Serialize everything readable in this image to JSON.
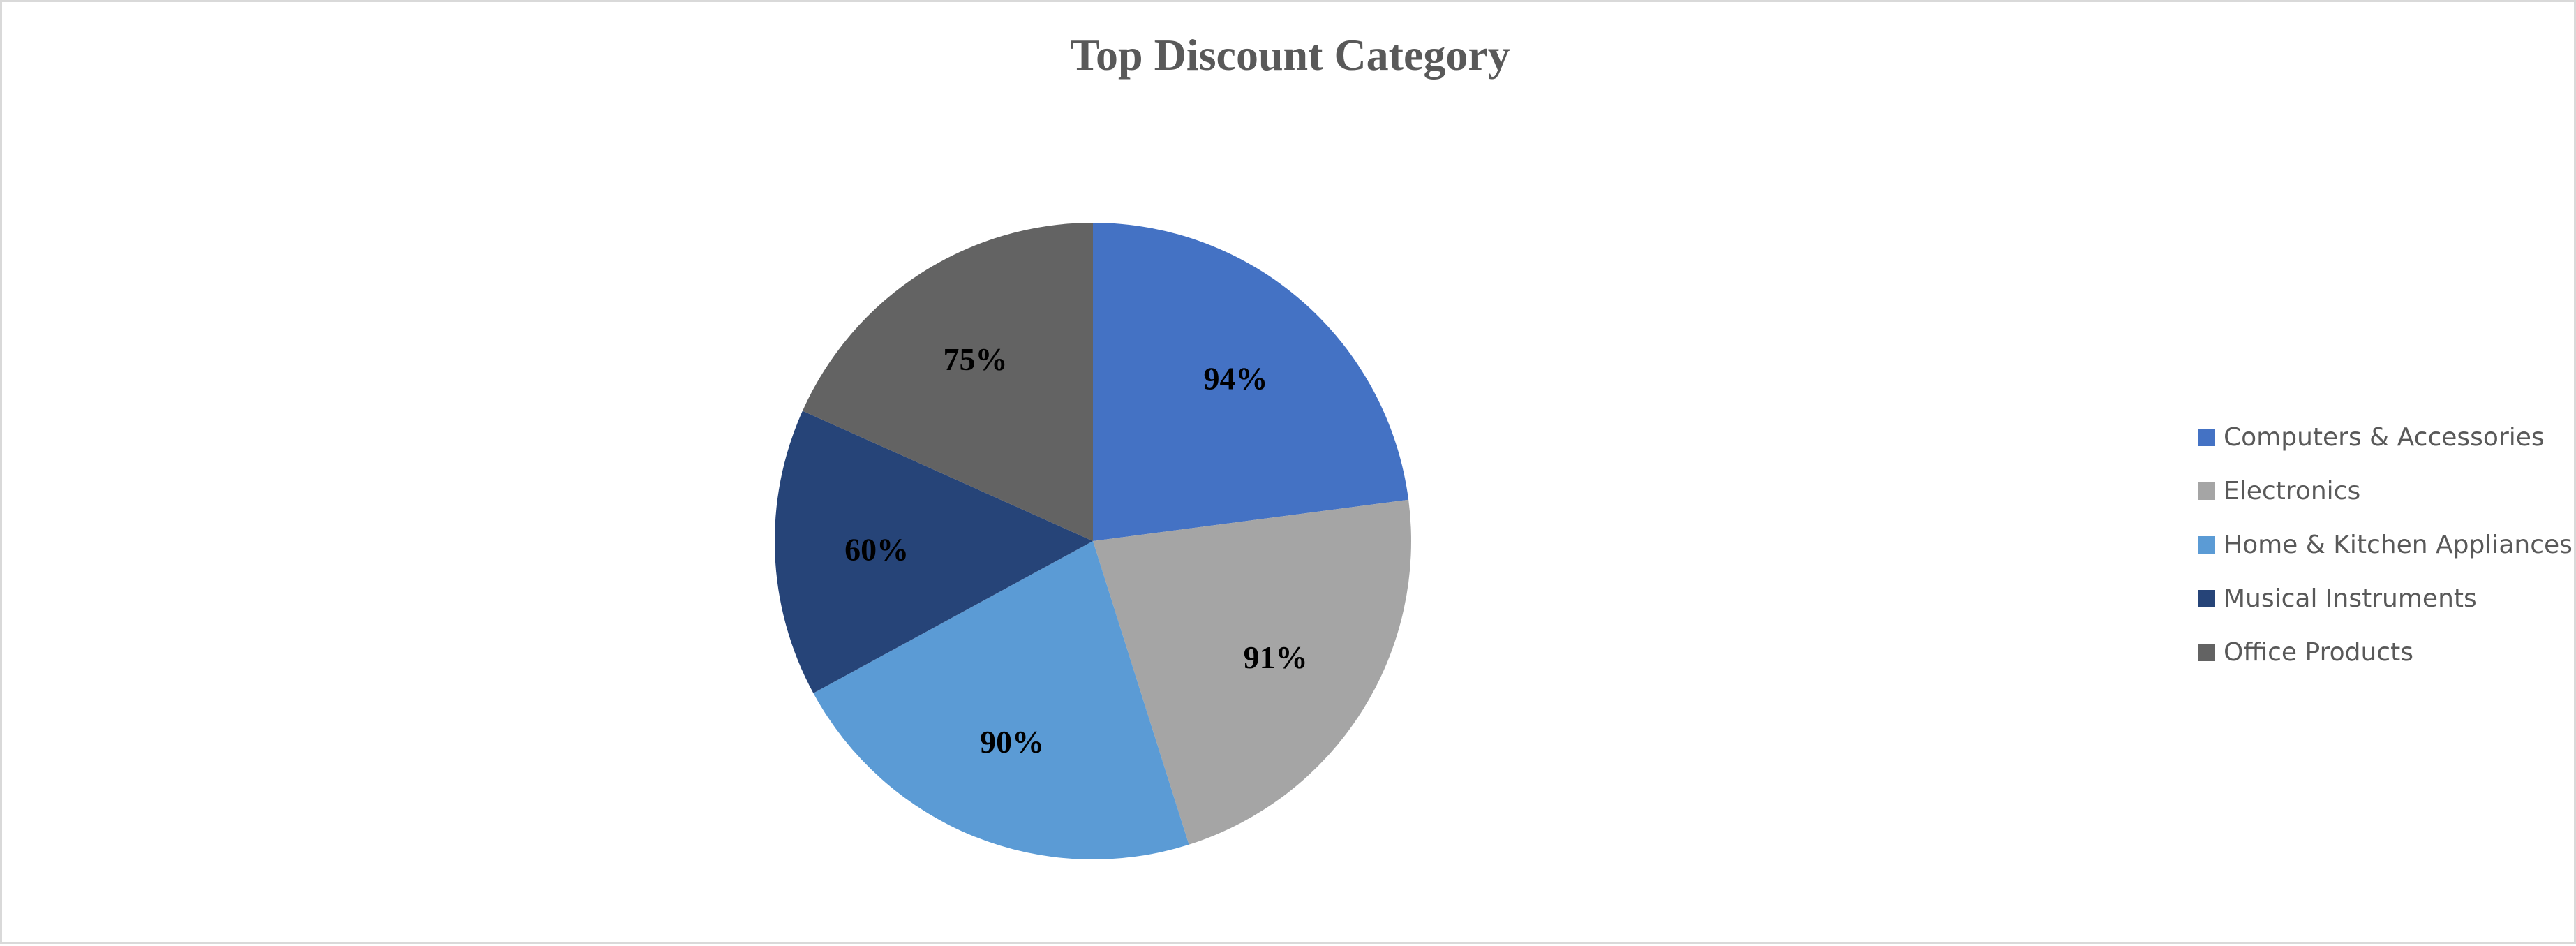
{
  "chart_data": {
    "type": "pie",
    "title": "Top Discount Category",
    "categories": [
      "Computers & Accessories",
      "Electronics",
      "Home & Kitchen Appliances",
      "Musical Instruments",
      "Office Products"
    ],
    "values": [
      94,
      91,
      90,
      60,
      75
    ],
    "labels": [
      "94%",
      "91%",
      "90%",
      "60%",
      "75%"
    ],
    "colors": [
      "#4472c4",
      "#a5a5a5",
      "#5b9bd5",
      "#264478",
      "#636363"
    ],
    "start_angle_deg": 0,
    "direction": "clockwise",
    "legend": "right"
  }
}
